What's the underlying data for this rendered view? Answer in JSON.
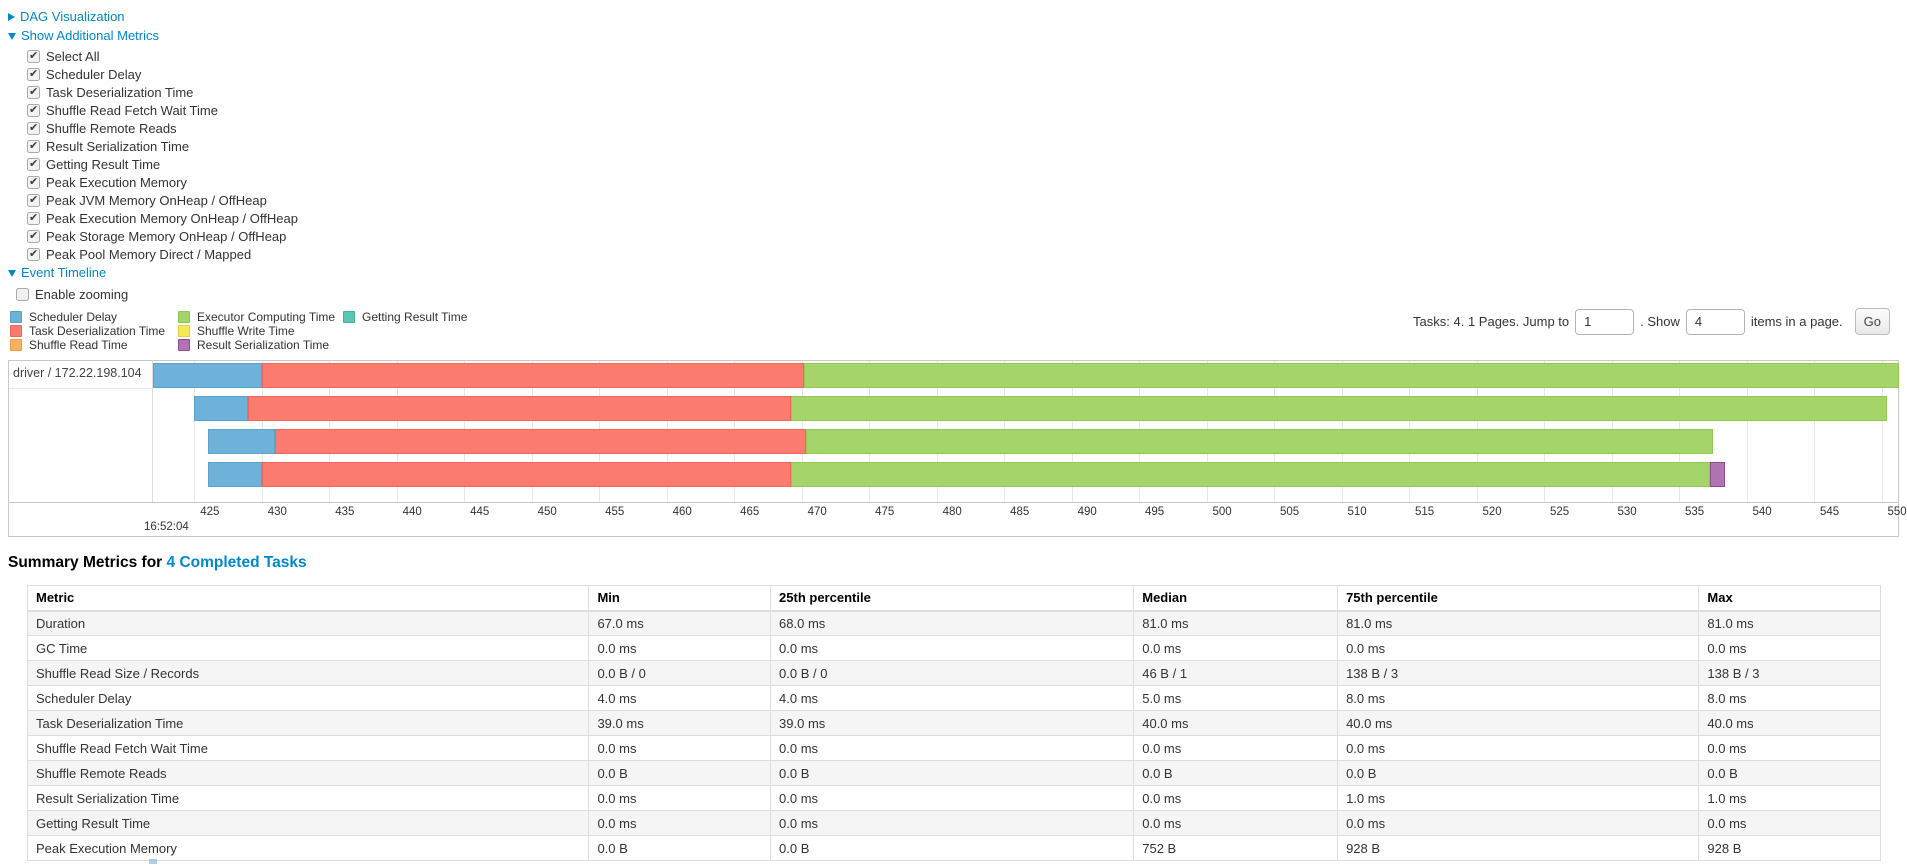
{
  "sections": {
    "dag_label": "DAG Visualization",
    "additional_metrics_label": "Show Additional Metrics",
    "event_timeline_label": "Event Timeline",
    "enable_zooming_label": "Enable zooming"
  },
  "metric_checkboxes": [
    {
      "label": "Select All",
      "checked": true
    },
    {
      "label": "Scheduler Delay",
      "checked": true
    },
    {
      "label": "Task Deserialization Time",
      "checked": true
    },
    {
      "label": "Shuffle Read Fetch Wait Time",
      "checked": true
    },
    {
      "label": "Shuffle Remote Reads",
      "checked": true
    },
    {
      "label": "Result Serialization Time",
      "checked": true
    },
    {
      "label": "Getting Result Time",
      "checked": true
    },
    {
      "label": "Peak Execution Memory",
      "checked": true
    },
    {
      "label": "Peak JVM Memory OnHeap / OffHeap",
      "checked": true
    },
    {
      "label": "Peak Execution Memory OnHeap / OffHeap",
      "checked": true
    },
    {
      "label": "Peak Storage Memory OnHeap / OffHeap",
      "checked": true
    },
    {
      "label": "Peak Pool Memory Direct / Mapped",
      "checked": true
    }
  ],
  "enable_zooming_checked": false,
  "legend_columns": [
    [
      {
        "label": "Scheduler Delay",
        "color": "#6FB2D9",
        "border": "#57A0CB"
      },
      {
        "label": "Task Deserialization Time",
        "color": "#FB7B6F",
        "border": "#EF6459"
      },
      {
        "label": "Shuffle Read Time",
        "color": "#FCAF5E",
        "border": "#EF9A46"
      }
    ],
    [
      {
        "label": "Executor Computing Time",
        "color": "#A5D46A",
        "border": "#90C452"
      },
      {
        "label": "Shuffle Write Time",
        "color": "#F5E956",
        "border": "#E0D23E"
      },
      {
        "label": "Result Serialization Time",
        "color": "#B173B1",
        "border": "#8E4D95"
      }
    ],
    [
      {
        "label": "Getting Result Time",
        "color": "#5BC6B2",
        "border": "#45B09A"
      }
    ]
  ],
  "pagination": {
    "prefix": "Tasks: 4. 1 Pages. Jump to",
    "jump_value": "1",
    "show_label": ". Show",
    "show_value": "4",
    "suffix": "items in a page.",
    "go_label": "Go"
  },
  "chart_data": {
    "type": "timeline",
    "group_label": "driver / 172.22.198.104",
    "axis": {
      "view_min": 421.95,
      "view_max": 551.3,
      "tick_start": 425,
      "tick_end": 550,
      "tick_step": 5,
      "major_time_label": "16:52:04"
    },
    "series_colors": {
      "scheduler_delay": {
        "fill": "#6FB2D9",
        "border": "#5BA3CD"
      },
      "task_deserialization": {
        "fill": "#FB7B6F",
        "border": "#F2665C"
      },
      "executor_computing": {
        "fill": "#A5D46A",
        "border": "#93C854"
      },
      "result_serialization": {
        "fill": "#B173B1",
        "border": "#8E4D95"
      }
    },
    "tasks": [
      {
        "segments": [
          {
            "type": "scheduler_delay",
            "start": 421.95,
            "end": 430.0
          },
          {
            "type": "task_deserialization",
            "start": 430.0,
            "end": 470.2
          },
          {
            "type": "executor_computing",
            "start": 470.2,
            "end": 551.3
          }
        ]
      },
      {
        "segments": [
          {
            "type": "scheduler_delay",
            "start": 425.0,
            "end": 429.0
          },
          {
            "type": "task_deserialization",
            "start": 429.0,
            "end": 469.2
          },
          {
            "type": "executor_computing",
            "start": 469.2,
            "end": 550.4
          }
        ]
      },
      {
        "segments": [
          {
            "type": "scheduler_delay",
            "start": 426.0,
            "end": 431.0
          },
          {
            "type": "task_deserialization",
            "start": 431.0,
            "end": 470.3
          },
          {
            "type": "executor_computing",
            "start": 470.3,
            "end": 537.5
          }
        ]
      },
      {
        "segments": [
          {
            "type": "scheduler_delay",
            "start": 426.0,
            "end": 430.0
          },
          {
            "type": "task_deserialization",
            "start": 430.0,
            "end": 469.2
          },
          {
            "type": "executor_computing",
            "start": 469.2,
            "end": 537.3
          },
          {
            "type": "result_serialization",
            "start": 537.3,
            "end": 538.4
          }
        ]
      }
    ]
  },
  "summary": {
    "title_prefix": "Summary Metrics for",
    "title_link": "4 Completed Tasks",
    "columns": [
      "Metric",
      "Min",
      "25th percentile",
      "Median",
      "75th percentile",
      "Max"
    ],
    "col_widths_pct": [
      30.3,
      9.8,
      19.6,
      11.0,
      19.5,
      9.8
    ],
    "rows": [
      [
        "Duration",
        "67.0 ms",
        "68.0 ms",
        "81.0 ms",
        "81.0 ms",
        "81.0 ms"
      ],
      [
        "GC Time",
        "0.0 ms",
        "0.0 ms",
        "0.0 ms",
        "0.0 ms",
        "0.0 ms"
      ],
      [
        "Shuffle Read Size / Records",
        "0.0 B / 0",
        "0.0 B / 0",
        "46 B / 1",
        "138 B / 3",
        "138 B / 3"
      ],
      [
        "Scheduler Delay",
        "4.0 ms",
        "4.0 ms",
        "5.0 ms",
        "8.0 ms",
        "8.0 ms"
      ],
      [
        "Task Deserialization Time",
        "39.0 ms",
        "39.0 ms",
        "40.0 ms",
        "40.0 ms",
        "40.0 ms"
      ],
      [
        "Shuffle Read Fetch Wait Time",
        "0.0 ms",
        "0.0 ms",
        "0.0 ms",
        "0.0 ms",
        "0.0 ms"
      ],
      [
        "Shuffle Remote Reads",
        "0.0 B",
        "0.0 B",
        "0.0 B",
        "0.0 B",
        "0.0 B"
      ],
      [
        "Result Serialization Time",
        "0.0 ms",
        "0.0 ms",
        "0.0 ms",
        "1.0 ms",
        "1.0 ms"
      ],
      [
        "Getting Result Time",
        "0.0 ms",
        "0.0 ms",
        "0.0 ms",
        "0.0 ms",
        "0.0 ms"
      ],
      [
        "Peak Execution Memory",
        "0.0 B",
        "0.0 B",
        "752 B",
        "928 B",
        "928 B"
      ]
    ]
  }
}
